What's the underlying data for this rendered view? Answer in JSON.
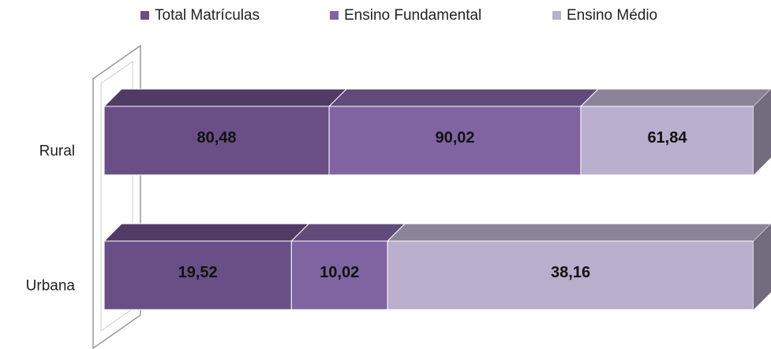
{
  "chart_data": {
    "type": "bar100_3d_horizontal",
    "categories": [
      "Rural",
      "Urbana"
    ],
    "series": [
      {
        "name": "Total Matrículas",
        "color": "#6a4f86",
        "values": [
          80.48,
          19.52
        ],
        "value_labels": [
          "80,48",
          "19,52"
        ]
      },
      {
        "name": "Ensino Fundamental",
        "color": "#8064a2",
        "values": [
          90.02,
          10.02
        ],
        "value_labels": [
          "90,02",
          "10,02"
        ]
      },
      {
        "name": "Ensino Médio",
        "color": "#b9aecb",
        "values": [
          61.84,
          38.16
        ],
        "value_labels": [
          "61,84",
          "38,16"
        ]
      }
    ],
    "legend": "top"
  }
}
